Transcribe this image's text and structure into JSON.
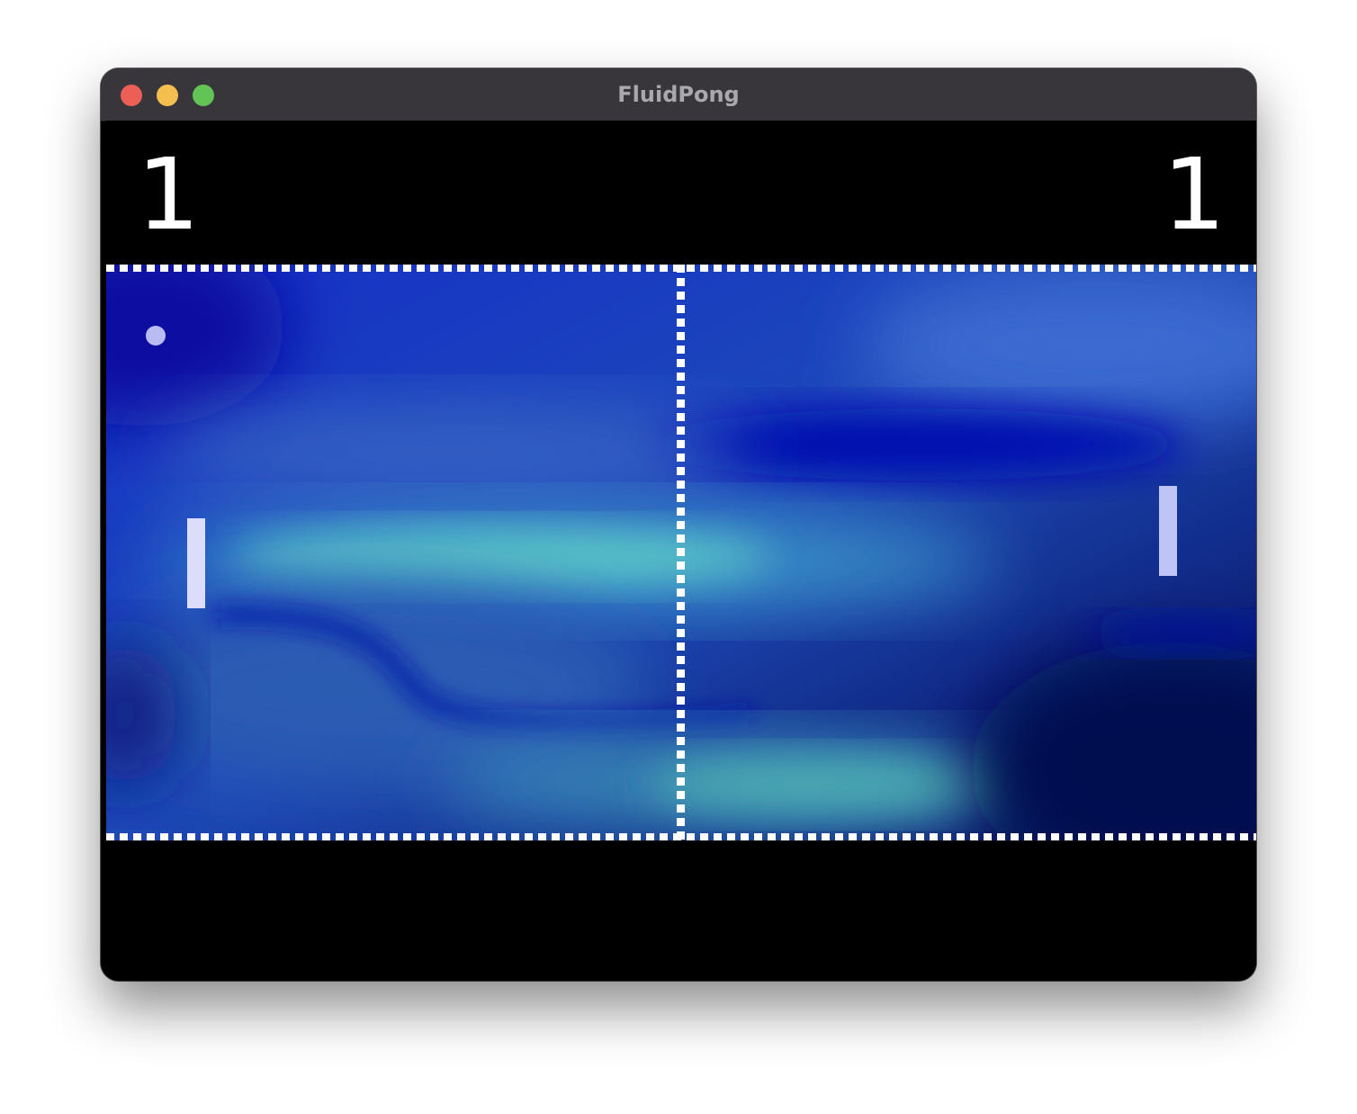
{
  "window": {
    "title": "FluidPong"
  },
  "traffic_lights": {
    "close_color": "#ec5f57",
    "minimize_color": "#f4bf4f",
    "maximize_color": "#61c454"
  },
  "scoreboard": {
    "left_score": "1",
    "right_score": "1"
  },
  "game": {
    "paddle_left_color": "#dcdcfb",
    "paddle_right_color": "#bfc4f6",
    "ball_color": "#b8bcf2"
  }
}
